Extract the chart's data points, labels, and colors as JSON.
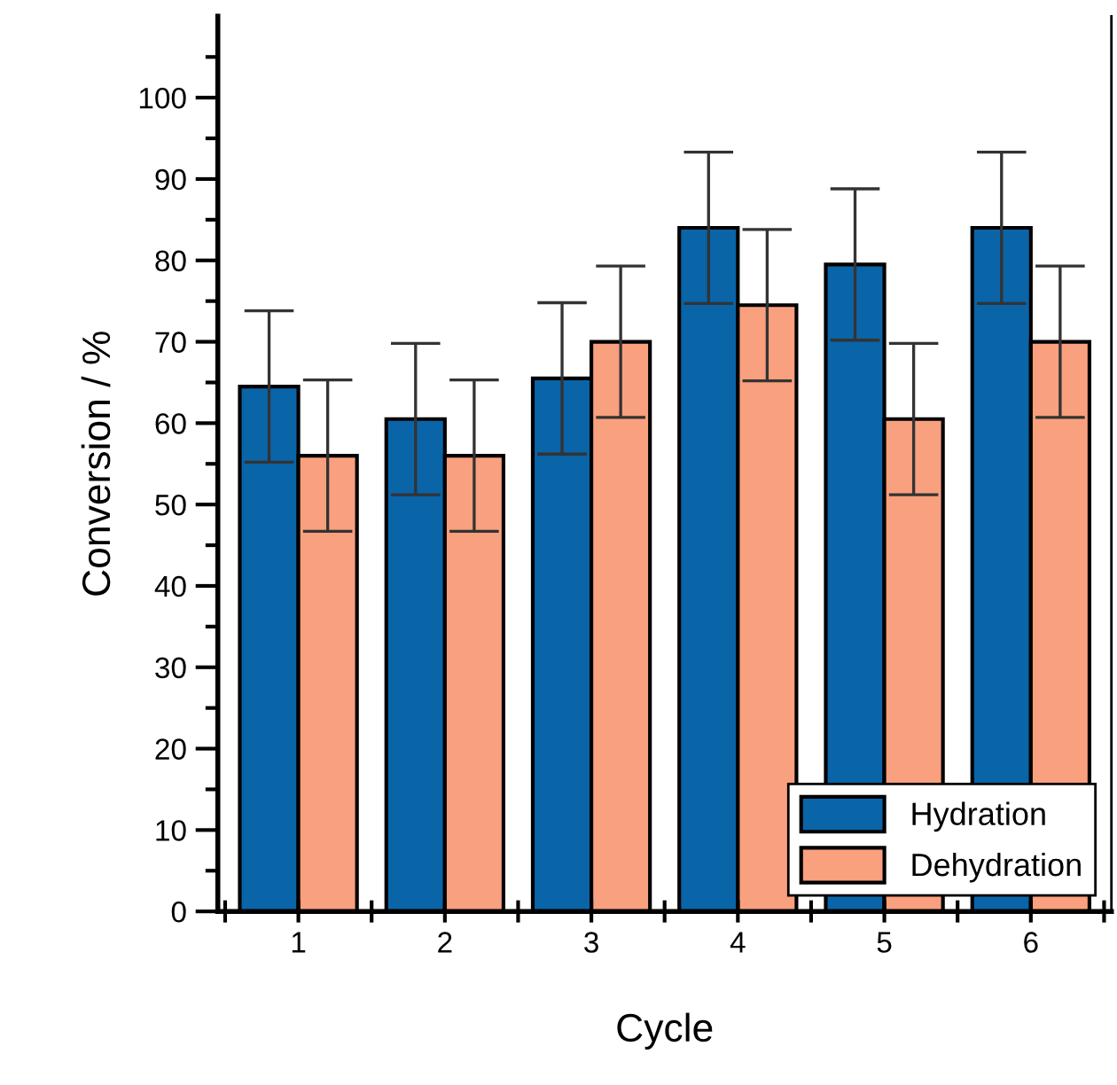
{
  "chart_data": {
    "type": "bar",
    "xlabel": "Cycle",
    "ylabel": "Conversion / %",
    "categories": [
      "1",
      "2",
      "3",
      "4",
      "5",
      "6"
    ],
    "series": [
      {
        "name": "Hydration",
        "color": "#0a64a8",
        "values": [
          64.5,
          60.5,
          65.5,
          84,
          79.5,
          84
        ],
        "errors": [
          9.3,
          9.3,
          9.3,
          9.3,
          9.3,
          9.3
        ]
      },
      {
        "name": "Dehydration",
        "color": "#f9a07e",
        "values": [
          56,
          56,
          70,
          74.5,
          60.5,
          70
        ],
        "errors": [
          9.3,
          9.3,
          9.3,
          9.3,
          9.3,
          9.3
        ]
      }
    ],
    "ylim": [
      0,
      110
    ],
    "yticks": [
      0,
      {
        "value": 5,
        "label": null
      },
      10,
      {
        "value": 15,
        "label": null
      },
      20,
      {
        "value": 25,
        "label": null
      },
      30,
      {
        "value": 35,
        "label": null
      },
      40,
      {
        "value": 45,
        "label": null
      },
      50,
      {
        "value": 55,
        "label": null
      },
      60,
      {
        "value": 65,
        "label": null
      },
      70,
      {
        "value": 75,
        "label": null
      },
      80,
      {
        "value": 85,
        "label": null
      },
      90,
      {
        "value": 95,
        "label": null
      },
      100,
      {
        "value": 105,
        "label": null
      }
    ],
    "legend": "bottom right",
    "grid": false
  }
}
